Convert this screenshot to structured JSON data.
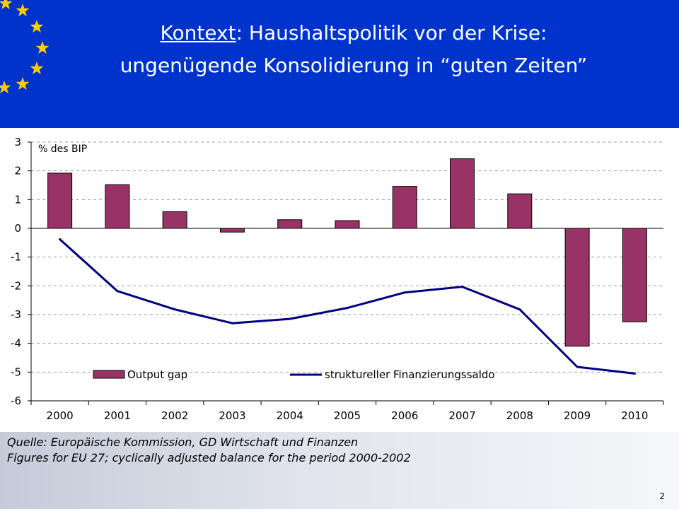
{
  "slide": {
    "title_lead": "Kontext",
    "title_rest": ": Haushaltspolitik vor der Krise:",
    "title_line2": "ungenügende Konsolidierung in “guten Zeiten”",
    "source_line1": "Quelle: Europäische Kommission, GD Wirtschaft und Finanzen",
    "source_line2": "Figures for EU 27; cyclically adjusted balance for the period 2000-2002",
    "page_number": "2",
    "banner_color": "#0033cc",
    "star_color": "#ffcc00",
    "icons": [
      "eu-star-icon"
    ]
  },
  "chart_data": {
    "type": "bar",
    "ylabel": "% des BIP",
    "ylim": [
      -6,
      3
    ],
    "yticks": [
      3,
      2,
      1,
      0,
      -1,
      -2,
      -3,
      -4,
      -5,
      -6
    ],
    "grid": true,
    "legend_position": "bottom-inside",
    "categories": [
      "2000",
      "2001",
      "2002",
      "2003",
      "2004",
      "2005",
      "2006",
      "2007",
      "2008",
      "2009",
      "2010"
    ],
    "series": [
      {
        "name": "Output gap",
        "type": "bar",
        "color": "#993366",
        "values": [
          1.92,
          1.52,
          0.58,
          -0.13,
          0.3,
          0.27,
          1.46,
          2.42,
          1.2,
          -4.1,
          -3.25
        ]
      },
      {
        "name": "struktureller Finanzierungssaldo",
        "type": "line",
        "color": "#000080",
        "values": [
          -0.38,
          -2.18,
          -2.82,
          -3.3,
          -3.15,
          -2.77,
          -2.23,
          -2.03,
          -2.82,
          -4.82,
          -5.05
        ]
      }
    ]
  }
}
